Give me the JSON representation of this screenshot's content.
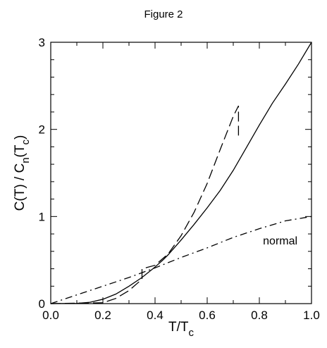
{
  "figure_label": "Figure 2",
  "chart_data": {
    "type": "line",
    "title": "Figure 2",
    "xlabel": "T/T",
    "xlabel_sub": "c",
    "ylabel_parts": [
      "C(T) / C",
      "n",
      "(T",
      "c",
      ")"
    ],
    "xlim": [
      0.0,
      1.0
    ],
    "ylim": [
      0,
      3
    ],
    "x_ticks": [
      0.0,
      0.2,
      0.4,
      0.6,
      0.8,
      1.0
    ],
    "x_tick_labels": [
      "0.0",
      "0.2",
      "0.4",
      "0.6",
      "0.8",
      "1.0"
    ],
    "y_ticks": [
      0,
      1,
      2,
      3
    ],
    "y_tick_labels": [
      "0",
      "1",
      "2",
      "3"
    ],
    "grid": false,
    "annotations": [
      {
        "text": "normal",
        "x": 0.88,
        "y": 0.68
      }
    ],
    "series": [
      {
        "style": "solid",
        "x": [
          0.0,
          0.1,
          0.15,
          0.2,
          0.25,
          0.3,
          0.35,
          0.4,
          0.43,
          0.45,
          0.5,
          0.55,
          0.6,
          0.65,
          0.7,
          0.75,
          0.8,
          0.85,
          0.9,
          0.95,
          1.0
        ],
        "y": [
          0.0,
          0.003,
          0.015,
          0.05,
          0.11,
          0.2,
          0.3,
          0.42,
          0.5,
          0.56,
          0.73,
          0.91,
          1.1,
          1.3,
          1.53,
          1.79,
          2.05,
          2.3,
          2.52,
          2.75,
          3.0
        ]
      },
      {
        "style": "dashed",
        "x": [
          0.0,
          0.2,
          0.25,
          0.3,
          0.35,
          0.35,
          0.4,
          0.45,
          0.5,
          0.55,
          0.6,
          0.65,
          0.7,
          0.72,
          0.72
        ],
        "y": [
          0.0,
          0.01,
          0.06,
          0.15,
          0.28,
          0.4,
          0.44,
          0.57,
          0.78,
          1.05,
          1.38,
          1.77,
          2.15,
          2.27,
          1.93
        ]
      },
      {
        "style": "dashdot",
        "x": [
          0.0,
          0.1,
          0.2,
          0.3,
          0.4,
          0.5,
          0.6,
          0.7,
          0.8,
          0.9,
          1.0
        ],
        "y": [
          0.0,
          0.1,
          0.2,
          0.3,
          0.41,
          0.53,
          0.64,
          0.76,
          0.86,
          0.95,
          1.0
        ]
      }
    ]
  }
}
